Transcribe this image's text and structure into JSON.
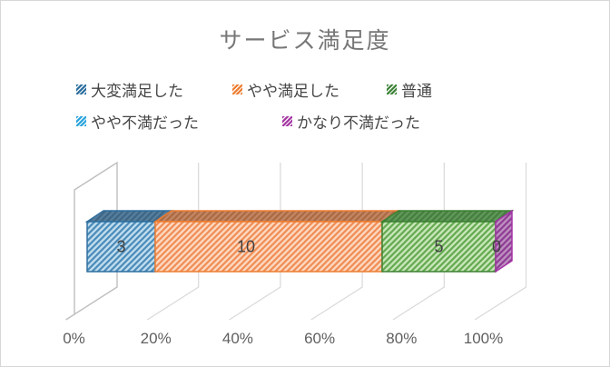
{
  "ui": {
    "background": "#ffffff",
    "frame_border": "#d7d7d7",
    "title_color": "#767676",
    "gridline_color": "#d9d9d9",
    "wall_color": "#bfbfbf",
    "axis_label_color": "#5f5f5f",
    "value_label_color": "#404040",
    "legend_text_color": "#464646"
  },
  "chart_data": {
    "type": "bar",
    "subtype": "3d-horizontal-100-percent-stacked",
    "title": "サービス満足度",
    "categories": [
      ""
    ],
    "total": 18,
    "series": [
      {
        "name": "大変満足した",
        "values": [
          3
        ],
        "percent_of_total": 16.7,
        "data_label": "3",
        "label_visible": true,
        "colors": {
          "legend": "#2a6d9d",
          "border": "#2e6f9e",
          "fill": "#bedcee",
          "hatch": "#4a8ab8",
          "top_fill": "#557d9c",
          "top_hatch": "#3e6684"
        }
      },
      {
        "name": "やや満足した",
        "values": [
          10
        ],
        "percent_of_total": 55.6,
        "data_label": "10",
        "label_visible": true,
        "colors": {
          "legend": "#ed7d31",
          "border": "#ed7d31",
          "fill": "#fcd8c0",
          "hatch": "#f08c54",
          "top_fill": "#c28564",
          "top_hatch": "#aa6a41"
        }
      },
      {
        "name": "普通",
        "values": [
          5
        ],
        "percent_of_total": 27.8,
        "data_label": "5",
        "label_visible": true,
        "colors": {
          "legend": "#3c8236",
          "border": "#3b8132",
          "fill": "#c9e6ba",
          "hatch": "#64aa50",
          "top_fill": "#5f9859",
          "top_hatch": "#457e3e"
        }
      },
      {
        "name": "やや不満だった",
        "values": [
          0
        ],
        "percent_of_total": 0,
        "data_label": "0",
        "label_visible": false,
        "colors": {
          "legend": "#29a3dd",
          "border": "#2795cc",
          "fill": "#bfe3f5",
          "hatch": "#41b0e4",
          "top_fill": "#5d94ad",
          "top_hatch": "#457e99"
        }
      },
      {
        "name": "かなり不満だった",
        "values": [
          0
        ],
        "percent_of_total": 0,
        "data_label": "0",
        "label_visible": true,
        "colors": {
          "legend": "#a437a2",
          "border": "#a432a6",
          "fill": "#bd8fc0",
          "hatch": "#8f3d94",
          "top_fill": "#9c6b9e",
          "top_hatch": "#7c4a80"
        }
      }
    ],
    "x_axis": {
      "ticks": [
        "0%",
        "20%",
        "40%",
        "60%",
        "80%",
        "100%"
      ],
      "min": "0%",
      "max": "100%",
      "gridlines": true
    },
    "legend_position": "top-left-two-rows",
    "xlabel": "",
    "ylabel": ""
  }
}
